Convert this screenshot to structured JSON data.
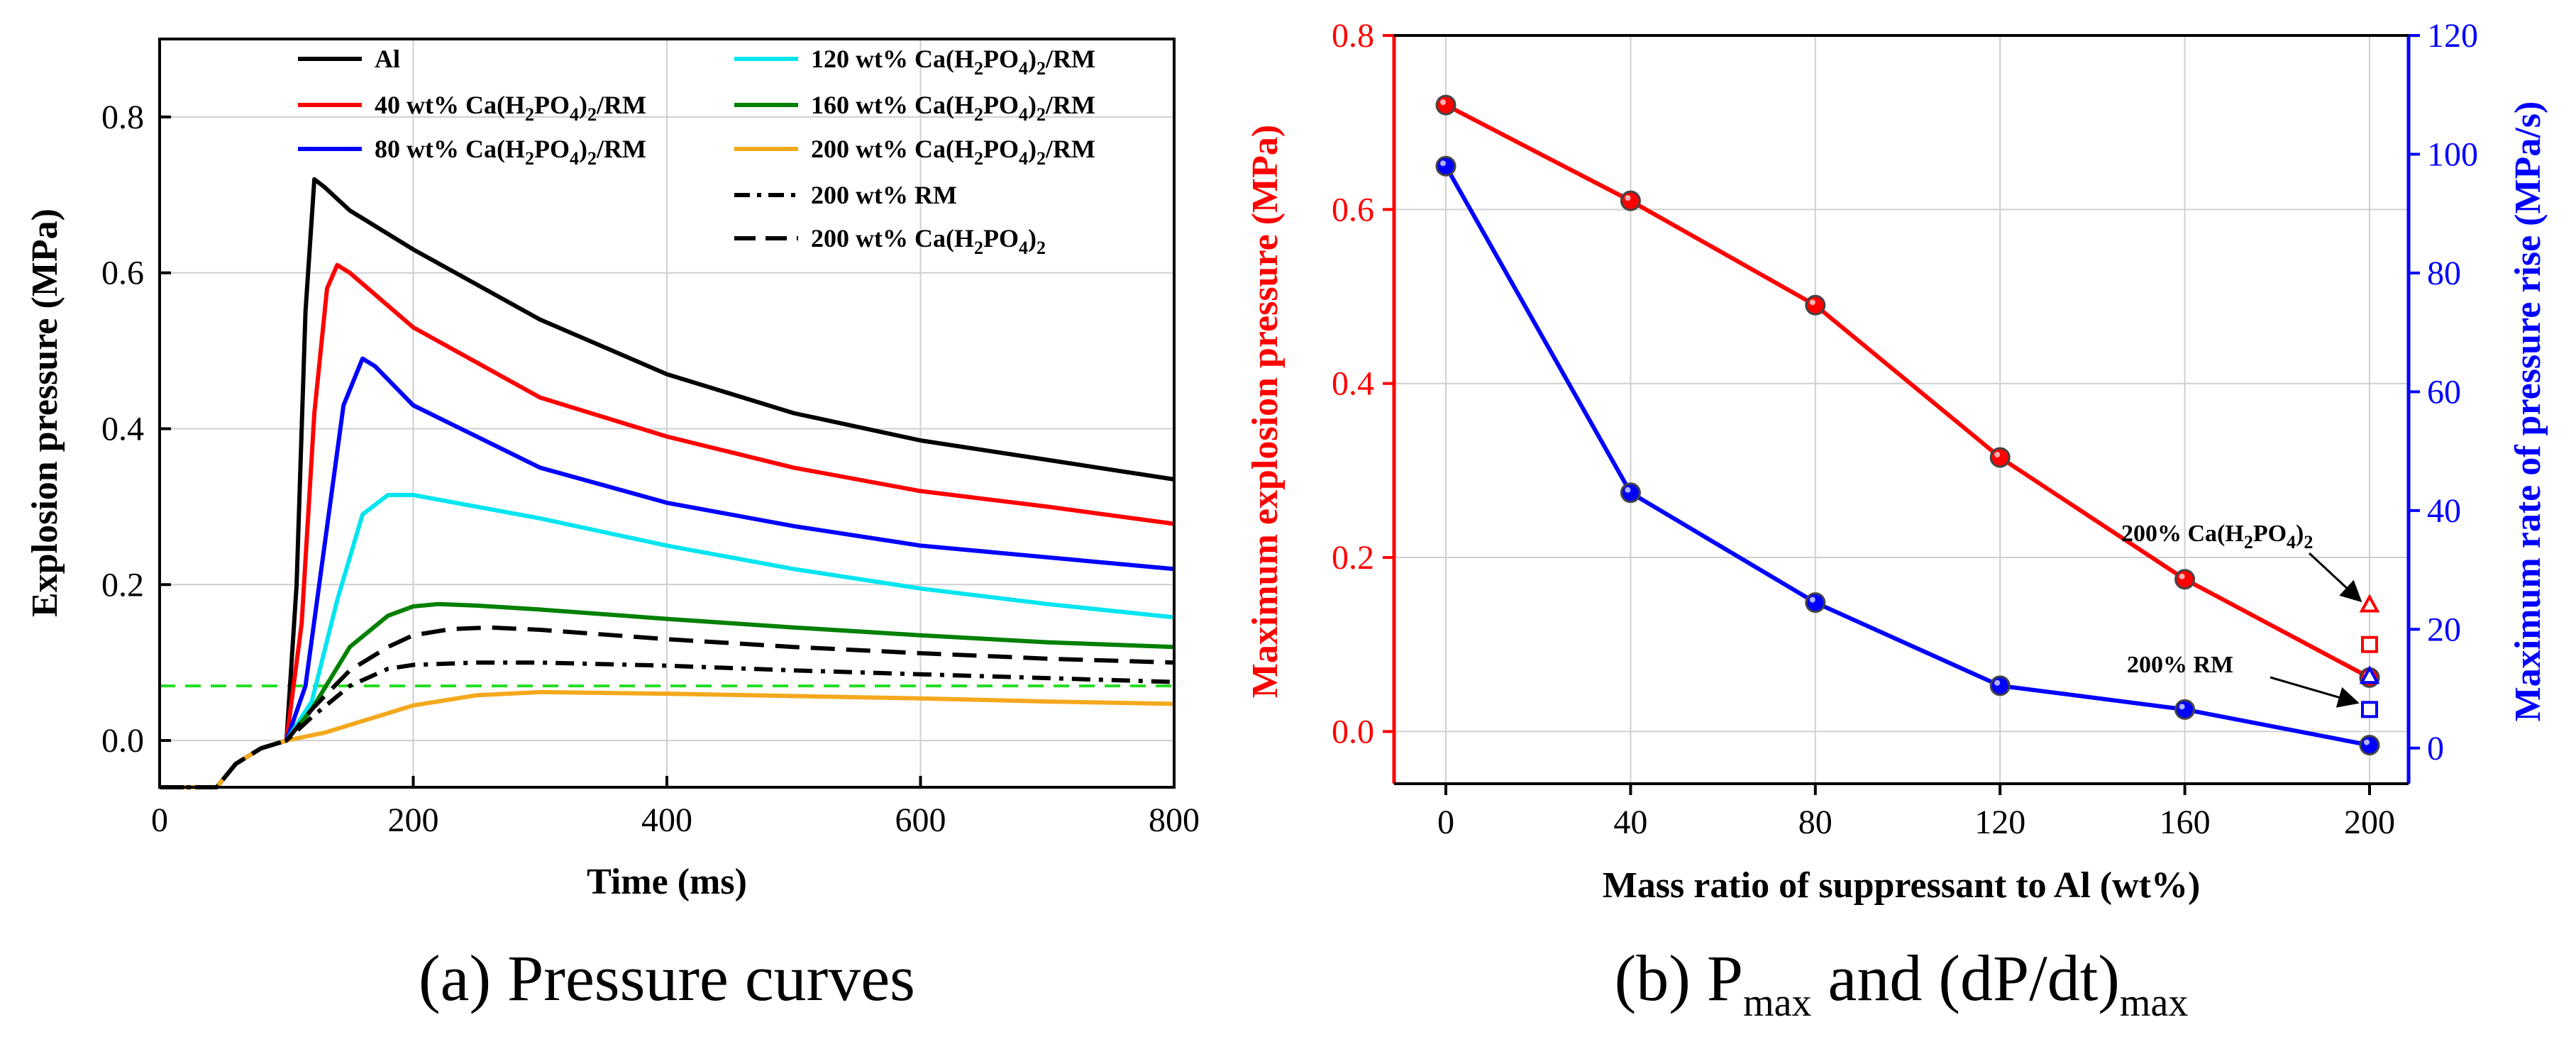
{
  "chart_data": [
    {
      "type": "line",
      "panel": "a",
      "caption": "(a) Pressure curves",
      "xlabel": "Time (ms)",
      "ylabel": "Explosion pressure (MPa)",
      "xlim": [
        0,
        800
      ],
      "ylim": [
        -0.06,
        0.9
      ],
      "xticks": [
        "0",
        "200",
        "400",
        "600",
        "800"
      ],
      "yticks": [
        "0.0",
        "0.2",
        "0.4",
        "0.6",
        "0.8"
      ],
      "grid": true,
      "reference_line": {
        "y": 0.07,
        "color": "#22dd22",
        "style": "dashed"
      },
      "legend_position": "top",
      "series": [
        {
          "name": "Al",
          "color": "#000000",
          "dash": "solid",
          "x": [
            0,
            45,
            60,
            80,
            100,
            108,
            115,
            122,
            130,
            150,
            200,
            300,
            400,
            500,
            600,
            700,
            800
          ],
          "y": [
            -0.06,
            -0.06,
            -0.03,
            -0.01,
            0.0,
            0.2,
            0.55,
            0.72,
            0.71,
            0.68,
            0.63,
            0.54,
            0.47,
            0.42,
            0.385,
            0.36,
            0.335
          ]
        },
        {
          "name": "40 wt% Ca(H2PO4)2/RM",
          "color": "#ff0000",
          "dash": "solid",
          "x": [
            0,
            45,
            60,
            80,
            100,
            112,
            122,
            132,
            140,
            150,
            200,
            300,
            400,
            500,
            600,
            700,
            800
          ],
          "y": [
            -0.06,
            -0.06,
            -0.03,
            -0.01,
            0.0,
            0.15,
            0.42,
            0.58,
            0.61,
            0.6,
            0.53,
            0.44,
            0.39,
            0.35,
            0.32,
            0.3,
            0.278
          ]
        },
        {
          "name": "80 wt% Ca(H2PO4)2/RM",
          "color": "#0000ff",
          "dash": "solid",
          "x": [
            0,
            45,
            60,
            80,
            100,
            115,
            130,
            145,
            160,
            170,
            200,
            300,
            400,
            500,
            600,
            700,
            800
          ],
          "y": [
            -0.06,
            -0.06,
            -0.03,
            -0.01,
            0.0,
            0.07,
            0.25,
            0.43,
            0.49,
            0.48,
            0.43,
            0.35,
            0.305,
            0.275,
            0.25,
            0.235,
            0.22
          ]
        },
        {
          "name": "120 wt% Ca(H2PO4)2/RM",
          "color": "#00e5f0",
          "dash": "solid",
          "x": [
            0,
            45,
            60,
            80,
            100,
            120,
            140,
            160,
            180,
            200,
            250,
            300,
            400,
            500,
            600,
            700,
            800
          ],
          "y": [
            -0.06,
            -0.06,
            -0.03,
            -0.01,
            0.0,
            0.05,
            0.18,
            0.29,
            0.315,
            0.315,
            0.3,
            0.285,
            0.25,
            0.22,
            0.195,
            0.175,
            0.158
          ]
        },
        {
          "name": "160 wt% Ca(H2PO4)2/RM",
          "color": "#008000",
          "dash": "solid",
          "x": [
            0,
            45,
            60,
            80,
            100,
            120,
            150,
            180,
            200,
            220,
            250,
            300,
            400,
            500,
            600,
            700,
            800
          ],
          "y": [
            -0.06,
            -0.06,
            -0.03,
            -0.01,
            0.0,
            0.04,
            0.12,
            0.16,
            0.172,
            0.175,
            0.173,
            0.168,
            0.156,
            0.145,
            0.135,
            0.126,
            0.12
          ]
        },
        {
          "name": "200 wt% Ca(H2PO4)2/RM",
          "color": "#f4a81d",
          "dash": "solid",
          "x": [
            0,
            45,
            60,
            80,
            100,
            130,
            170,
            200,
            250,
            300,
            350,
            400,
            500,
            600,
            700,
            800
          ],
          "y": [
            -0.06,
            -0.06,
            -0.03,
            -0.01,
            0.0,
            0.01,
            0.03,
            0.045,
            0.058,
            0.062,
            0.061,
            0.06,
            0.057,
            0.054,
            0.05,
            0.047
          ]
        },
        {
          "name": "200 wt% RM",
          "color": "#000000",
          "dash": "dashdot",
          "x": [
            0,
            45,
            60,
            80,
            100,
            120,
            150,
            180,
            200,
            250,
            300,
            400,
            500,
            600,
            700,
            800
          ],
          "y": [
            -0.06,
            -0.06,
            -0.03,
            -0.01,
            0.0,
            0.03,
            0.07,
            0.092,
            0.097,
            0.1,
            0.1,
            0.096,
            0.09,
            0.085,
            0.08,
            0.075
          ]
        },
        {
          "name": "200 wt% Ca(H2PO4)2",
          "color": "#000000",
          "dash": "dashed",
          "x": [
            0,
            45,
            60,
            80,
            100,
            120,
            150,
            180,
            200,
            230,
            260,
            300,
            400,
            500,
            600,
            700,
            800
          ],
          "y": [
            -0.06,
            -0.06,
            -0.03,
            -0.01,
            0.0,
            0.04,
            0.09,
            0.12,
            0.135,
            0.143,
            0.145,
            0.142,
            0.13,
            0.12,
            0.112,
            0.105,
            0.1
          ]
        }
      ]
    },
    {
      "type": "line",
      "panel": "b",
      "caption": "(b) Pmax and (dP/dt)max",
      "xlabel": "Mass ratio of suppressant to Al (wt%)",
      "ylabel_left": "Maximum explosion pressure (MPa)",
      "ylabel_right": "Maximum rate of pressure rise (MPa/s)",
      "categories": [
        0,
        40,
        80,
        120,
        160,
        200
      ],
      "xticks": [
        "0",
        "40",
        "80",
        "120",
        "160",
        "200"
      ],
      "ylim_left": [
        -0.06,
        0.8
      ],
      "ylim_right": [
        -6,
        120
      ],
      "yticks_left": [
        "0.0",
        "0.2",
        "0.4",
        "0.6",
        "0.8"
      ],
      "yticks_right": [
        "0",
        "20",
        "40",
        "60",
        "80",
        "100",
        "120"
      ],
      "grid": true,
      "series": [
        {
          "name": "Maximum explosion pressure",
          "axis": "left",
          "color": "#ff0000",
          "values": [
            0.72,
            0.61,
            0.49,
            0.315,
            0.175,
            0.062
          ]
        },
        {
          "name": "Maximum rate of pressure rise",
          "axis": "right",
          "color": "#0000ff",
          "values": [
            98,
            43,
            24.5,
            10.5,
            6.5,
            0.5
          ]
        }
      ],
      "extra_points": [
        {
          "label": "200% Ca(H2PO4)2",
          "x": 200,
          "pressure": 0.145,
          "rate": 12
        },
        {
          "label": "200% RM",
          "x": 200,
          "pressure": 0.1,
          "rate": 6.5
        }
      ],
      "annotations": [
        "200% Ca(H2PO4)2",
        "200% RM"
      ]
    }
  ],
  "left_axis_color": "#ff0000",
  "right_axis_color": "#0000ff"
}
